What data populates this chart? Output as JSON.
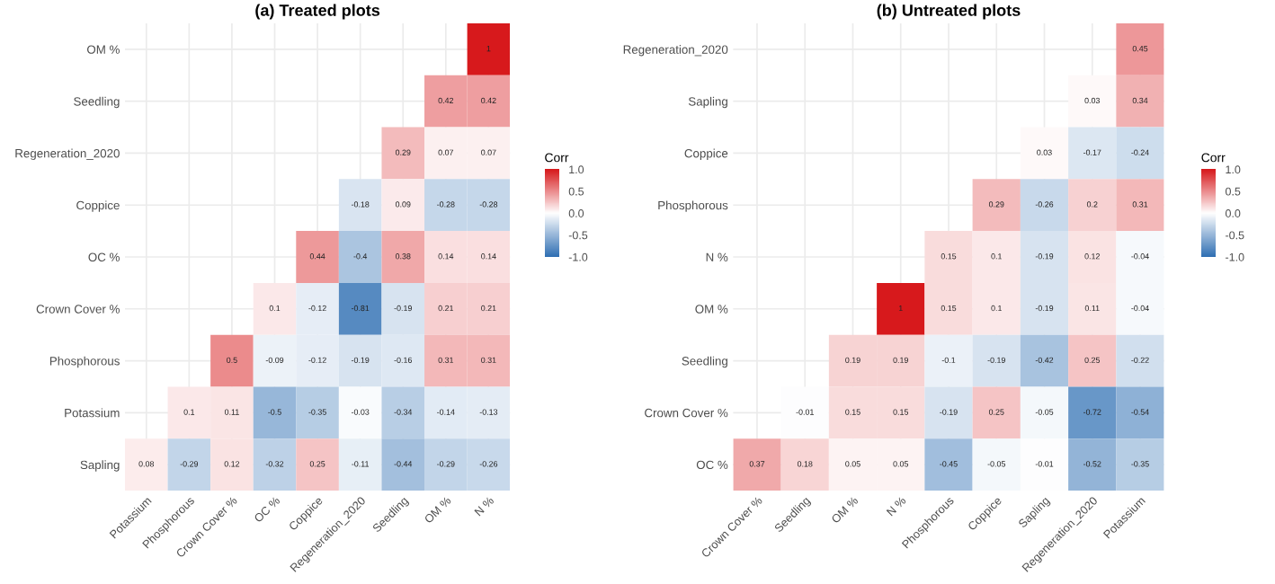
{
  "chart_data": [
    {
      "type": "heatmap",
      "title": "(a) Treated plots",
      "clabel": "Corr",
      "data_labels": true,
      "grid": true,
      "categories": [
        "Potassium",
        "Phosphorous",
        "Crown Cover %",
        "OC %",
        "Coppice",
        "Regeneration_2020",
        "Seedling",
        "OM %",
        "N %"
      ],
      "y_categories": [
        "OM %",
        "Seedling",
        "Regeneration_2020",
        "Coppice",
        "OC %",
        "Crown Cover %",
        "Phosphorous",
        "Potassium",
        "Sapling"
      ],
      "cells": [
        [
          null,
          null,
          null,
          null,
          null,
          null,
          null,
          null,
          1
        ],
        [
          null,
          null,
          null,
          null,
          null,
          null,
          null,
          0.42,
          0.42
        ],
        [
          null,
          null,
          null,
          null,
          null,
          null,
          0.29,
          0.07,
          0.07
        ],
        [
          null,
          null,
          null,
          null,
          null,
          -0.18,
          0.09,
          -0.28,
          -0.28
        ],
        [
          null,
          null,
          null,
          null,
          0.44,
          -0.4,
          0.38,
          0.14,
          0.14
        ],
        [
          null,
          null,
          null,
          0.1,
          -0.12,
          -0.81,
          -0.19,
          0.21,
          0.21
        ],
        [
          null,
          null,
          0.5,
          -0.09,
          -0.12,
          -0.19,
          -0.16,
          0.31,
          0.31
        ],
        [
          null,
          0.1,
          0.11,
          -0.5,
          -0.35,
          -0.03,
          -0.34,
          -0.14,
          -0.13
        ],
        [
          0.08,
          -0.29,
          0.12,
          -0.32,
          0.25,
          -0.11,
          -0.44,
          -0.29,
          -0.26
        ]
      ],
      "clim": [
        -1,
        1
      ],
      "cticks": [
        {
          "value": -1,
          "label": "-1.0"
        },
        {
          "value": -0.5,
          "label": "-0.5"
        },
        {
          "value": 0,
          "label": "0.0"
        },
        {
          "value": 0.5,
          "label": "0.5"
        },
        {
          "value": 1,
          "label": "1.0"
        }
      ]
    },
    {
      "type": "heatmap",
      "title": "(b) Untreated plots",
      "clabel": "Corr",
      "data_labels": true,
      "grid": true,
      "categories": [
        "Crown Cover %",
        "Seedling",
        "OM %",
        "N %",
        "Phosphorous",
        "Coppice",
        "Sapling",
        "Regeneration_2020",
        "Potassium"
      ],
      "y_categories": [
        "Regeneration_2020",
        "Sapling",
        "Coppice",
        "Phosphorous",
        "N %",
        "OM %",
        "Seedling",
        "Crown Cover %",
        "OC %"
      ],
      "cells": [
        [
          null,
          null,
          null,
          null,
          null,
          null,
          null,
          null,
          0.45
        ],
        [
          null,
          null,
          null,
          null,
          null,
          null,
          null,
          0.03,
          0.34
        ],
        [
          null,
          null,
          null,
          null,
          null,
          null,
          0.03,
          -0.17,
          -0.24
        ],
        [
          null,
          null,
          null,
          null,
          null,
          0.29,
          -0.26,
          0.2,
          0.31
        ],
        [
          null,
          null,
          null,
          null,
          0.15,
          0.1,
          -0.19,
          0.12,
          -0.04
        ],
        [
          null,
          null,
          null,
          1,
          0.15,
          0.1,
          -0.19,
          0.11,
          -0.04
        ],
        [
          null,
          null,
          0.19,
          0.19,
          -0.1,
          -0.19,
          -0.42,
          0.25,
          -0.22
        ],
        [
          null,
          -0.01,
          0.15,
          0.15,
          -0.19,
          0.25,
          -0.05,
          -0.72,
          -0.54
        ],
        [
          0.37,
          0.18,
          0.05,
          0.05,
          -0.45,
          -0.05,
          -0.01,
          -0.52,
          -0.35
        ]
      ],
      "clim": [
        -1,
        1
      ],
      "cticks": [
        {
          "value": -1,
          "label": "-1.0"
        },
        {
          "value": -0.5,
          "label": "-0.5"
        },
        {
          "value": 0,
          "label": "0.0"
        },
        {
          "value": 0.5,
          "label": "0.5"
        },
        {
          "value": 1,
          "label": "1.0"
        }
      ]
    }
  ]
}
